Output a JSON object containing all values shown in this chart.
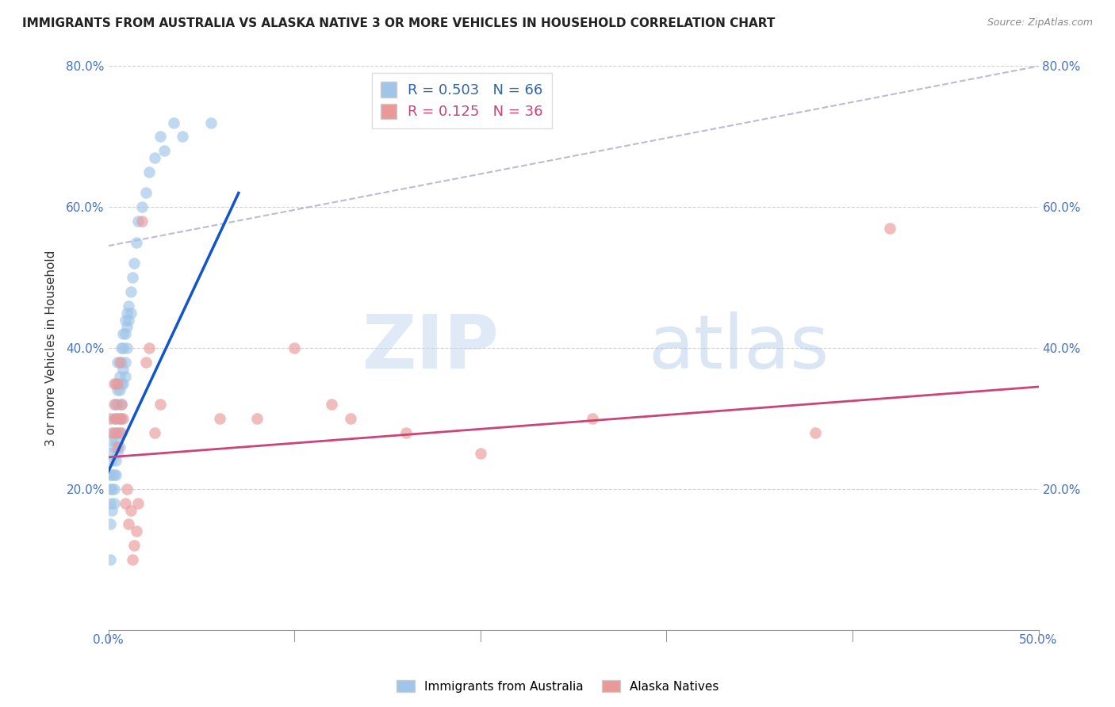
{
  "title": "IMMIGRANTS FROM AUSTRALIA VS ALASKA NATIVE 3 OR MORE VEHICLES IN HOUSEHOLD CORRELATION CHART",
  "source": "Source: ZipAtlas.com",
  "ylabel": "3 or more Vehicles in Household",
  "xlim": [
    0.0,
    0.5
  ],
  "ylim": [
    0.0,
    0.8
  ],
  "xticks": [
    0.0,
    0.1,
    0.2,
    0.3,
    0.4,
    0.5
  ],
  "yticks": [
    0.0,
    0.2,
    0.4,
    0.6,
    0.8
  ],
  "xtick_labels_show": [
    "0.0%",
    "",
    "",
    "",
    "",
    "50.0%"
  ],
  "ytick_labels": [
    "",
    "20.0%",
    "40.0%",
    "60.0%",
    "80.0%"
  ],
  "blue_R": 0.503,
  "blue_N": 66,
  "pink_R": 0.125,
  "pink_N": 36,
  "blue_color": "#9fc5e8",
  "pink_color": "#ea9999",
  "blue_line_color": "#1155cc",
  "pink_line_color": "#cc4477",
  "legend_labels": [
    "Immigrants from Australia",
    "Alaska Natives"
  ],
  "watermark_zip": "ZIP",
  "watermark_atlas": "atlas",
  "blue_scatter_x": [
    0.001,
    0.001,
    0.001,
    0.001,
    0.001,
    0.001,
    0.002,
    0.002,
    0.002,
    0.002,
    0.002,
    0.003,
    0.003,
    0.003,
    0.003,
    0.003,
    0.003,
    0.004,
    0.004,
    0.004,
    0.004,
    0.004,
    0.004,
    0.005,
    0.005,
    0.005,
    0.005,
    0.005,
    0.006,
    0.006,
    0.006,
    0.006,
    0.006,
    0.007,
    0.007,
    0.007,
    0.007,
    0.007,
    0.008,
    0.008,
    0.008,
    0.008,
    0.009,
    0.009,
    0.009,
    0.009,
    0.01,
    0.01,
    0.01,
    0.011,
    0.011,
    0.012,
    0.012,
    0.013,
    0.014,
    0.015,
    0.016,
    0.018,
    0.02,
    0.022,
    0.025,
    0.028,
    0.03,
    0.035,
    0.04,
    0.055
  ],
  "blue_scatter_y": [
    0.22,
    0.25,
    0.2,
    0.18,
    0.15,
    0.1,
    0.24,
    0.22,
    0.27,
    0.2,
    0.17,
    0.26,
    0.28,
    0.3,
    0.22,
    0.2,
    0.18,
    0.32,
    0.3,
    0.27,
    0.24,
    0.22,
    0.35,
    0.34,
    0.32,
    0.28,
    0.25,
    0.38,
    0.36,
    0.34,
    0.3,
    0.28,
    0.26,
    0.4,
    0.38,
    0.35,
    0.32,
    0.3,
    0.42,
    0.4,
    0.37,
    0.35,
    0.44,
    0.42,
    0.38,
    0.36,
    0.45,
    0.43,
    0.4,
    0.46,
    0.44,
    0.48,
    0.45,
    0.5,
    0.52,
    0.55,
    0.58,
    0.6,
    0.62,
    0.65,
    0.67,
    0.7,
    0.68,
    0.72,
    0.7,
    0.72
  ],
  "pink_scatter_x": [
    0.001,
    0.002,
    0.003,
    0.003,
    0.004,
    0.004,
    0.005,
    0.005,
    0.006,
    0.006,
    0.007,
    0.007,
    0.008,
    0.009,
    0.01,
    0.011,
    0.012,
    0.013,
    0.014,
    0.015,
    0.016,
    0.018,
    0.02,
    0.022,
    0.025,
    0.028,
    0.06,
    0.08,
    0.1,
    0.12,
    0.13,
    0.16,
    0.2,
    0.26,
    0.38,
    0.42
  ],
  "pink_scatter_y": [
    0.3,
    0.28,
    0.32,
    0.35,
    0.28,
    0.3,
    0.26,
    0.35,
    0.3,
    0.38,
    0.28,
    0.32,
    0.3,
    0.18,
    0.2,
    0.15,
    0.17,
    0.1,
    0.12,
    0.14,
    0.18,
    0.58,
    0.38,
    0.4,
    0.28,
    0.32,
    0.3,
    0.3,
    0.4,
    0.32,
    0.3,
    0.28,
    0.25,
    0.3,
    0.28,
    0.57
  ],
  "blue_line_x": [
    0.0,
    0.07
  ],
  "blue_line_y": [
    0.225,
    0.62
  ],
  "pink_line_x": [
    0.0,
    0.5
  ],
  "pink_line_y": [
    0.245,
    0.345
  ],
  "dash_line_x": [
    0.0,
    0.5
  ],
  "dash_line_y": [
    0.545,
    0.8
  ]
}
